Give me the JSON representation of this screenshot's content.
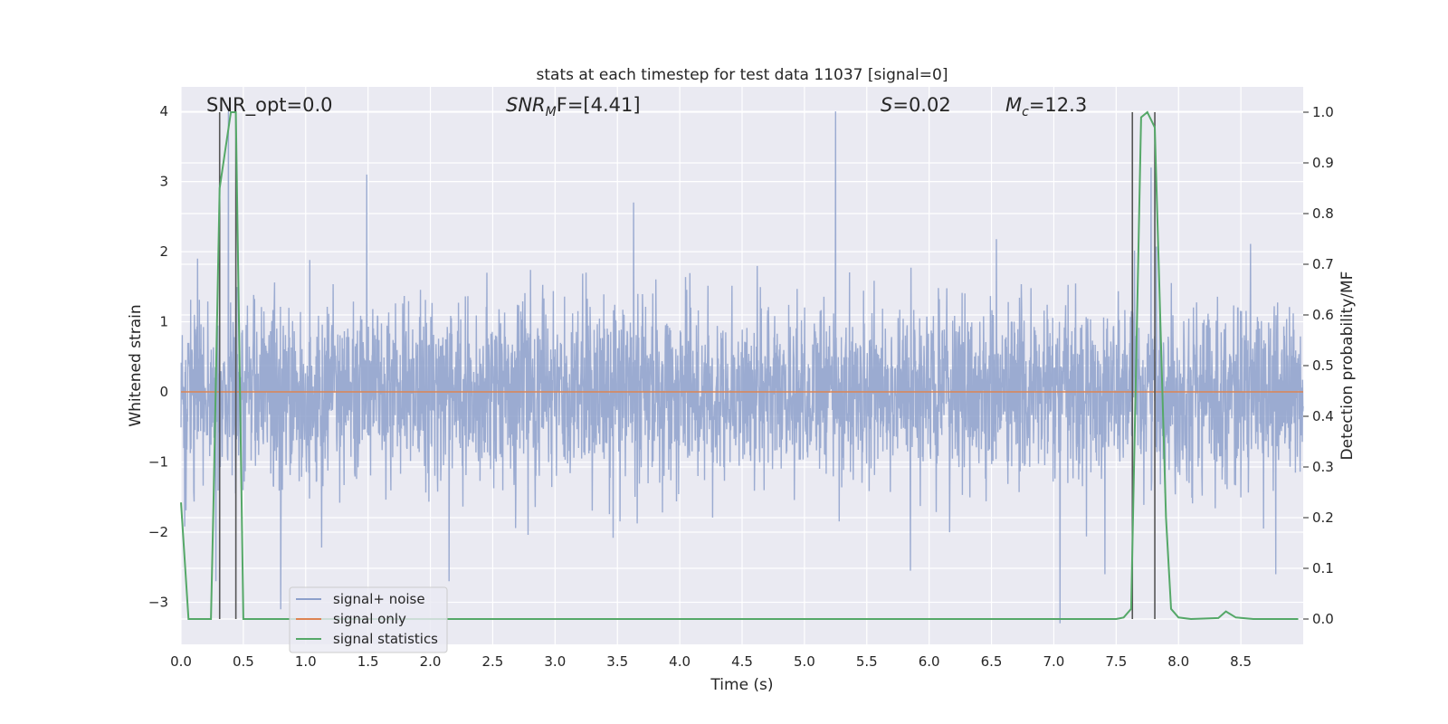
{
  "chart_data": {
    "type": "line",
    "title": "stats at each timestep for test data 11037 [signal=0]",
    "xlabel": "Time (s)",
    "ylabel": "Whitened strain",
    "y2label": "Detection probability/MF",
    "xlim": [
      0,
      9.0
    ],
    "ylim": [
      -3.6,
      4.35
    ],
    "y2lim": [
      -0.05,
      1.05
    ],
    "xticks": [
      0.0,
      0.5,
      1.0,
      1.5,
      2.0,
      2.5,
      3.0,
      3.5,
      4.0,
      4.5,
      5.0,
      5.5,
      6.0,
      6.5,
      7.0,
      7.5,
      8.0,
      8.5
    ],
    "xtick_labels": [
      "0.0",
      "0.5",
      "1.0",
      "1.5",
      "2.0",
      "2.5",
      "3.0",
      "3.5",
      "4.0",
      "4.5",
      "5.0",
      "5.5",
      "6.0",
      "6.5",
      "7.0",
      "7.5",
      "8.0",
      "8.5"
    ],
    "yticks": [
      -3,
      -2,
      -1,
      0,
      1,
      2,
      3,
      4
    ],
    "ytick_labels": [
      "−3",
      "−2",
      "−1",
      "0",
      "1",
      "2",
      "3",
      "4"
    ],
    "y2ticks": [
      0.0,
      0.1,
      0.2,
      0.3,
      0.4,
      0.5,
      0.6,
      0.7,
      0.8,
      0.9,
      1.0
    ],
    "y2tick_labels": [
      "0.0",
      "0.1",
      "0.2",
      "0.3",
      "0.4",
      "0.5",
      "0.6",
      "0.7",
      "0.8",
      "0.9",
      "1.0"
    ],
    "grid": true,
    "legend_position": "lower-left",
    "annotations": {
      "snr_opt": "SNR_opt=0.0",
      "snr_mf_main": "SNR",
      "snr_mf_sub": "M",
      "snr_mf_rest": "F=[4.41]",
      "s_main": "S",
      "s_rest": "=0.02",
      "mc_main": "M",
      "mc_sub": "c",
      "mc_rest": "=12.3"
    },
    "vertical_markers": [
      0.31,
      0.44,
      7.63,
      7.81
    ],
    "series": [
      {
        "name": "signal+ noise",
        "color": "#8da0cb",
        "axis": "left",
        "style": "noise",
        "x_range": [
          0,
          9.0
        ],
        "amplitude_std": 0.62,
        "peak_values": [
          {
            "x": 0.28,
            "y": -2.7
          },
          {
            "x": 0.38,
            "y": 4.0
          },
          {
            "x": 0.8,
            "y": -3.1
          },
          {
            "x": 1.49,
            "y": 3.1
          },
          {
            "x": 2.15,
            "y": -2.7
          },
          {
            "x": 3.63,
            "y": 2.7
          },
          {
            "x": 5.25,
            "y": 4.0
          },
          {
            "x": 5.85,
            "y": -2.55
          },
          {
            "x": 7.05,
            "y": -3.3
          },
          {
            "x": 7.41,
            "y": -2.6
          },
          {
            "x": 7.78,
            "y": 3.2
          },
          {
            "x": 8.78,
            "y": -2.6
          }
        ]
      },
      {
        "name": "signal only",
        "color": "#dd8452",
        "axis": "left",
        "x": [
          0,
          9.0
        ],
        "y": [
          0,
          0
        ]
      },
      {
        "name": "signal statistics",
        "color": "#55a868",
        "axis": "right",
        "x": [
          0.0,
          0.06,
          0.12,
          0.18,
          0.24,
          0.26,
          0.31,
          0.4,
          0.44,
          0.5,
          0.56,
          1.0,
          2.0,
          3.0,
          4.0,
          5.0,
          6.0,
          7.0,
          7.5,
          7.56,
          7.62,
          7.7,
          7.75,
          7.81,
          7.9,
          7.94,
          8.0,
          8.1,
          8.32,
          8.38,
          8.46,
          8.6,
          8.96
        ],
        "y": [
          0.23,
          0.0,
          0.0,
          0.0,
          0.0,
          0.22,
          0.85,
          1.0,
          1.0,
          0.0,
          0.0,
          0.0,
          0.0,
          0.0,
          0.0,
          0.0,
          0.0,
          0.0,
          0.0,
          0.003,
          0.02,
          0.99,
          1.0,
          0.97,
          0.2,
          0.02,
          0.003,
          0.0,
          0.002,
          0.015,
          0.003,
          0.0,
          0.0
        ]
      }
    ]
  }
}
